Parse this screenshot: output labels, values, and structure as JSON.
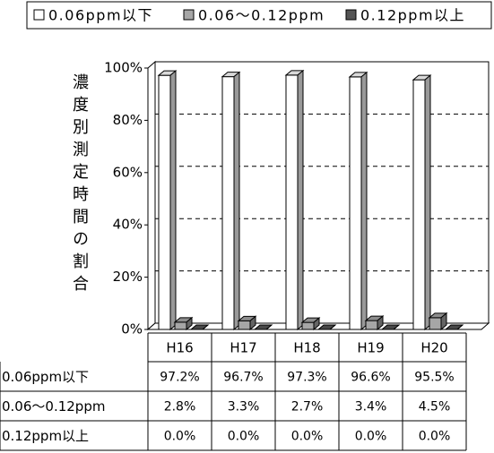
{
  "chart_data": {
    "type": "bar3d",
    "y_label": "濃度別測定時間の割合",
    "categories": [
      "H16",
      "H17",
      "H18",
      "H19",
      "H20"
    ],
    "series": [
      {
        "name": "0.06ppm以下",
        "color": "#ffffff",
        "values": [
          97.2,
          96.7,
          97.3,
          96.6,
          95.5
        ],
        "value_labels": [
          "97.2%",
          "96.7%",
          "97.3%",
          "96.6%",
          "95.5%"
        ]
      },
      {
        "name": "0.06～0.12ppm",
        "color": "#a6a6a6",
        "values": [
          2.8,
          3.3,
          2.7,
          3.4,
          4.5
        ],
        "value_labels": [
          "2.8%",
          "3.3%",
          "2.7%",
          "3.4%",
          "4.5%"
        ]
      },
      {
        "name": "0.12ppm以上",
        "color": "#555555",
        "values": [
          0.0,
          0.0,
          0.0,
          0.0,
          0.0
        ],
        "value_labels": [
          "0.0%",
          "0.0%",
          "0.0%",
          "0.0%",
          "0.0%"
        ]
      }
    ],
    "ylim": [
      0,
      100
    ],
    "yticks": [
      {
        "value": 0,
        "label": "0%"
      },
      {
        "value": 20,
        "label": "20%"
      },
      {
        "value": 40,
        "label": "40%"
      },
      {
        "value": 60,
        "label": "60%"
      },
      {
        "value": 80,
        "label": "80%"
      },
      {
        "value": 100,
        "label": "100%"
      }
    ],
    "grid": true,
    "legend": "top",
    "data_table": true
  }
}
